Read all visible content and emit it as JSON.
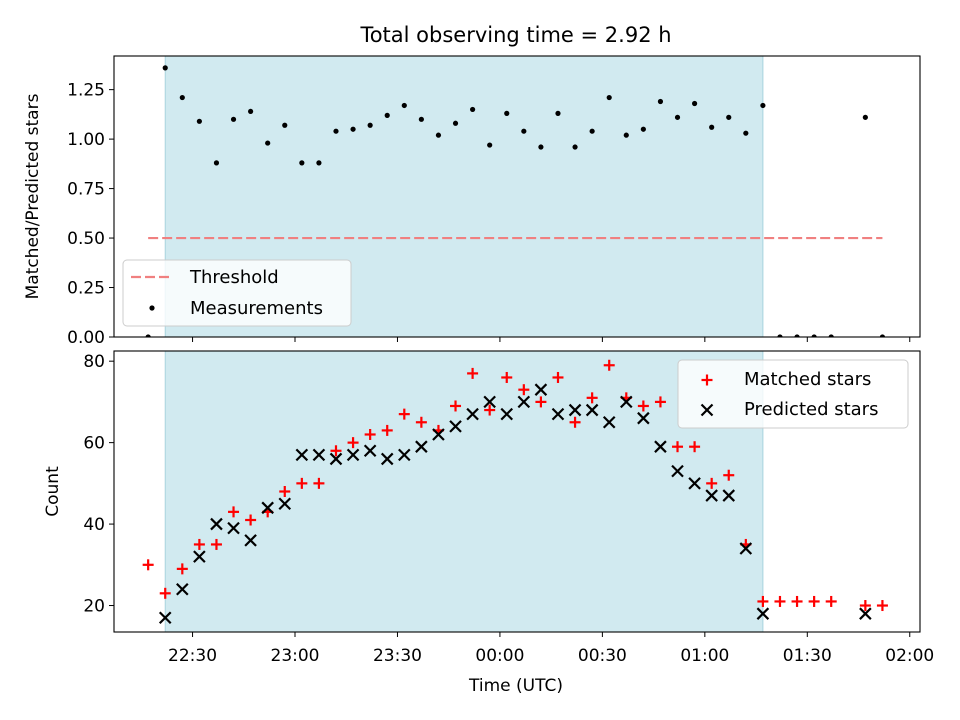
{
  "figure": {
    "title": "Total observing time = 2.92 h",
    "xlabel": "Time (UTC)"
  },
  "colors": {
    "shade": "#d1eaf0",
    "shade_edge": "#a9d3de",
    "threshold": "#f08080",
    "matched": "#ff0000",
    "predicted": "#000000",
    "measure": "#000000"
  },
  "chart_data": [
    {
      "type": "scatter",
      "title": "Total observing time = 2.92 h",
      "xlabel": "",
      "ylabel": "Matched/Predicted stars",
      "xlim": [
        "22:07",
        "02:03"
      ],
      "ylim": [
        0,
        1.42
      ],
      "x_ticks": [
        "22:30",
        "23:00",
        "23:30",
        "00:00",
        "00:30",
        "01:00",
        "01:30",
        "02:00"
      ],
      "yticks": [
        0.0,
        0.25,
        0.5,
        0.75,
        1.0,
        1.25
      ],
      "ytick_labels": [
        "0.00",
        "0.25",
        "0.50",
        "0.75",
        "1.00",
        "1.25"
      ],
      "shaded_interval": [
        "22:22",
        "01:17"
      ],
      "threshold": {
        "name": "Threshold",
        "y": 0.5,
        "x_range": [
          "22:17",
          "01:52"
        ]
      },
      "legend": {
        "position": "lower-left",
        "entries": [
          "Threshold",
          "Measurements"
        ]
      },
      "series": [
        {
          "name": "Measurements",
          "points": [
            [
              "22:17",
              0.0
            ],
            [
              "22:22",
              1.36
            ],
            [
              "22:27",
              1.21
            ],
            [
              "22:32",
              1.09
            ],
            [
              "22:37",
              0.88
            ],
            [
              "22:42",
              1.1
            ],
            [
              "22:47",
              1.14
            ],
            [
              "22:52",
              0.98
            ],
            [
              "22:57",
              1.07
            ],
            [
              "23:02",
              0.88
            ],
            [
              "23:07",
              0.88
            ],
            [
              "23:12",
              1.04
            ],
            [
              "23:17",
              1.05
            ],
            [
              "23:22",
              1.07
            ],
            [
              "23:27",
              1.12
            ],
            [
              "23:32",
              1.17
            ],
            [
              "23:37",
              1.1
            ],
            [
              "23:42",
              1.02
            ],
            [
              "23:47",
              1.08
            ],
            [
              "23:52",
              1.15
            ],
            [
              "23:57",
              0.97
            ],
            [
              "00:02",
              1.13
            ],
            [
              "00:07",
              1.04
            ],
            [
              "00:12",
              0.96
            ],
            [
              "00:17",
              1.13
            ],
            [
              "00:22",
              0.96
            ],
            [
              "00:27",
              1.04
            ],
            [
              "00:32",
              1.21
            ],
            [
              "00:37",
              1.02
            ],
            [
              "00:42",
              1.05
            ],
            [
              "00:47",
              1.19
            ],
            [
              "00:52",
              1.11
            ],
            [
              "00:57",
              1.18
            ],
            [
              "01:02",
              1.06
            ],
            [
              "01:07",
              1.11
            ],
            [
              "01:12",
              1.03
            ],
            [
              "01:17",
              1.17
            ],
            [
              "01:22",
              0.0
            ],
            [
              "01:27",
              0.0
            ],
            [
              "01:32",
              0.0
            ],
            [
              "01:37",
              0.0
            ],
            [
              "01:47",
              1.11
            ],
            [
              "01:52",
              0.0
            ]
          ]
        }
      ]
    },
    {
      "type": "scatter",
      "title": "",
      "xlabel": "Time (UTC)",
      "ylabel": "Count",
      "xlim": [
        "22:07",
        "02:03"
      ],
      "ylim": [
        13.5,
        82.5
      ],
      "x_ticks": [
        "22:30",
        "23:00",
        "23:30",
        "00:00",
        "00:30",
        "01:00",
        "01:30",
        "02:00"
      ],
      "yticks": [
        20,
        40,
        60,
        80
      ],
      "ytick_labels": [
        "20",
        "40",
        "60",
        "80"
      ],
      "shaded_interval": [
        "22:22",
        "01:17"
      ],
      "legend": {
        "position": "upper-right",
        "entries": [
          "Matched stars",
          "Predicted stars"
        ]
      },
      "series": [
        {
          "name": "Matched stars",
          "points": [
            [
              "22:17",
              30
            ],
            [
              "22:22",
              23
            ],
            [
              "22:27",
              29
            ],
            [
              "22:32",
              35
            ],
            [
              "22:37",
              35
            ],
            [
              "22:42",
              43
            ],
            [
              "22:47",
              41
            ],
            [
              "22:52",
              43
            ],
            [
              "22:57",
              48
            ],
            [
              "23:02",
              50
            ],
            [
              "23:07",
              50
            ],
            [
              "23:12",
              58
            ],
            [
              "23:17",
              60
            ],
            [
              "23:22",
              62
            ],
            [
              "23:27",
              63
            ],
            [
              "23:32",
              67
            ],
            [
              "23:37",
              65
            ],
            [
              "23:42",
              63
            ],
            [
              "23:47",
              69
            ],
            [
              "23:52",
              77
            ],
            [
              "23:57",
              68
            ],
            [
              "00:02",
              76
            ],
            [
              "00:07",
              73
            ],
            [
              "00:12",
              70
            ],
            [
              "00:17",
              76
            ],
            [
              "00:22",
              65
            ],
            [
              "00:27",
              71
            ],
            [
              "00:32",
              79
            ],
            [
              "00:37",
              71
            ],
            [
              "00:42",
              69
            ],
            [
              "00:47",
              70
            ],
            [
              "00:52",
              59
            ],
            [
              "00:57",
              59
            ],
            [
              "01:02",
              50
            ],
            [
              "01:07",
              52
            ],
            [
              "01:12",
              35
            ],
            [
              "01:17",
              21
            ],
            [
              "01:22",
              21
            ],
            [
              "01:27",
              21
            ],
            [
              "01:32",
              21
            ],
            [
              "01:37",
              21
            ],
            [
              "01:47",
              20
            ],
            [
              "01:52",
              20
            ]
          ]
        },
        {
          "name": "Predicted stars",
          "points": [
            [
              "22:22",
              17
            ],
            [
              "22:27",
              24
            ],
            [
              "22:32",
              32
            ],
            [
              "22:37",
              40
            ],
            [
              "22:42",
              39
            ],
            [
              "22:47",
              36
            ],
            [
              "22:52",
              44
            ],
            [
              "22:57",
              45
            ],
            [
              "23:02",
              57
            ],
            [
              "23:07",
              57
            ],
            [
              "23:12",
              56
            ],
            [
              "23:17",
              57
            ],
            [
              "23:22",
              58
            ],
            [
              "23:27",
              56
            ],
            [
              "23:32",
              57
            ],
            [
              "23:37",
              59
            ],
            [
              "23:42",
              62
            ],
            [
              "23:47",
              64
            ],
            [
              "23:52",
              67
            ],
            [
              "23:57",
              70
            ],
            [
              "00:02",
              67
            ],
            [
              "00:07",
              70
            ],
            [
              "00:12",
              73
            ],
            [
              "00:17",
              67
            ],
            [
              "00:22",
              68
            ],
            [
              "00:27",
              68
            ],
            [
              "00:32",
              65
            ],
            [
              "00:37",
              70
            ],
            [
              "00:42",
              66
            ],
            [
              "00:47",
              59
            ],
            [
              "00:52",
              53
            ],
            [
              "00:57",
              50
            ],
            [
              "01:02",
              47
            ],
            [
              "01:07",
              47
            ],
            [
              "01:12",
              34
            ],
            [
              "01:17",
              18
            ],
            [
              "01:47",
              18
            ]
          ]
        }
      ]
    }
  ]
}
